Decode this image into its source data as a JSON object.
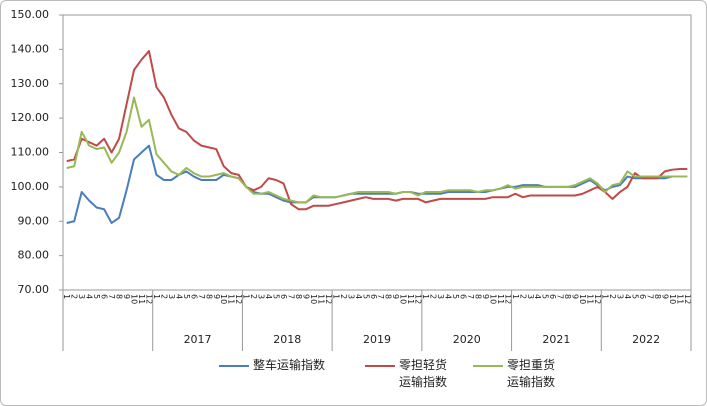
{
  "chart_data": {
    "type": "line",
    "categories": [
      "1",
      "2",
      "3",
      "4",
      "5",
      "6",
      "7",
      "8",
      "9",
      "10",
      "11",
      "12",
      "1",
      "2",
      "3",
      "4",
      "5",
      "6",
      "7",
      "8",
      "9",
      "10",
      "11",
      "12",
      "1",
      "2",
      "3",
      "4",
      "5",
      "6",
      "7",
      "8",
      "9",
      "10",
      "11",
      "12",
      "1",
      "2",
      "3",
      "4",
      "5",
      "6",
      "7",
      "8",
      "9",
      "10",
      "11",
      "12",
      "1",
      "2",
      "3",
      "4",
      "5",
      "6",
      "7",
      "8",
      "9",
      "10",
      "11",
      "12",
      "1",
      "2",
      "3",
      "4",
      "5",
      "6",
      "7",
      "8",
      "9",
      "10",
      "11",
      "12",
      "1",
      "2",
      "3",
      "4",
      "5",
      "6",
      "7",
      "8",
      "9",
      "10",
      "11",
      "12"
    ],
    "year_groups": [
      null,
      "2017",
      "2018",
      "2019",
      "2020",
      "2021",
      "2022"
    ],
    "ylim": [
      70,
      150
    ],
    "yticks": [
      {
        "value": 70,
        "label": "70.00"
      },
      {
        "value": 80,
        "label": "80.00"
      },
      {
        "value": 90,
        "label": "90.00"
      },
      {
        "value": 100,
        "label": "100.00"
      },
      {
        "value": 110,
        "label": "110.00"
      },
      {
        "value": 120,
        "label": "120.00"
      },
      {
        "value": 130,
        "label": "130.00"
      },
      {
        "value": 140,
        "label": "140.00"
      },
      {
        "value": 150,
        "label": "150.00"
      }
    ],
    "grid": false,
    "series": [
      {
        "name": "整车运输指数",
        "color": "#4a7ebb",
        "values": [
          89.5,
          90,
          98.5,
          96,
          94,
          93.5,
          89.5,
          91,
          99,
          108,
          110,
          112,
          103.5,
          102,
          102,
          103.5,
          104.5,
          103,
          102,
          102,
          102,
          103.5,
          103,
          102.5,
          100,
          98.5,
          98,
          98,
          97,
          96,
          95.5,
          95.5,
          95.5,
          97,
          97,
          97,
          97,
          97.5,
          98,
          98,
          98,
          98,
          98,
          98,
          98,
          98.5,
          98.5,
          98,
          98,
          98,
          98,
          98.5,
          98.5,
          98.5,
          98.5,
          98.5,
          98.5,
          99,
          99.5,
          100,
          100,
          100.5,
          100.5,
          100.5,
          100,
          100,
          100,
          100,
          100,
          101,
          102,
          100.5,
          99,
          100,
          100.5,
          103,
          102.5,
          102.5,
          102.5,
          102.5,
          102.5,
          103,
          103,
          103
        ]
      },
      {
        "name": "零担轻货运输指数",
        "color": "#be4b48",
        "values": [
          107.5,
          108,
          114,
          113,
          112,
          114,
          110,
          114,
          124,
          134,
          137,
          139.5,
          129,
          126,
          121,
          117,
          116,
          113.5,
          112,
          111.5,
          111,
          106,
          104,
          103.5,
          100,
          99,
          100,
          102.5,
          102,
          101,
          95,
          93.5,
          93.5,
          94.5,
          94.5,
          94.5,
          95,
          95.5,
          96,
          96.5,
          97,
          96.5,
          96.5,
          96.5,
          96,
          96.5,
          96.5,
          96.5,
          95.5,
          96,
          96.5,
          96.5,
          96.5,
          96.5,
          96.5,
          96.5,
          96.5,
          97,
          97,
          97,
          98,
          97,
          97.5,
          97.5,
          97.5,
          97.5,
          97.5,
          97.5,
          97.5,
          98,
          99,
          100,
          98.5,
          96.5,
          98.5,
          100,
          104,
          102.5,
          102.5,
          102.5,
          104.5,
          105,
          105.2,
          105.2
        ]
      },
      {
        "name": "零担重货运输指数",
        "color": "#98b954",
        "values": [
          105.5,
          106,
          116,
          112,
          111,
          111.5,
          107,
          110,
          116,
          126,
          117.5,
          119.5,
          109.5,
          107,
          104.5,
          103.5,
          105.5,
          104,
          103,
          103,
          103.5,
          104,
          103,
          102.5,
          100,
          98,
          98,
          98.5,
          97.5,
          96.5,
          96,
          95.5,
          95.5,
          97.5,
          97,
          97,
          97,
          97.5,
          98,
          98.5,
          98.5,
          98.5,
          98.5,
          98.5,
          98,
          98.5,
          98.5,
          97.5,
          98.5,
          98.5,
          98.5,
          99,
          99,
          99,
          99,
          98.5,
          99,
          99,
          99.5,
          100.5,
          99.5,
          100,
          100,
          100,
          100,
          100,
          100,
          100,
          100.5,
          101.5,
          102.5,
          101,
          98.5,
          100.5,
          101,
          104.5,
          103,
          103,
          103,
          103,
          103,
          103,
          103,
          103
        ]
      }
    ]
  }
}
